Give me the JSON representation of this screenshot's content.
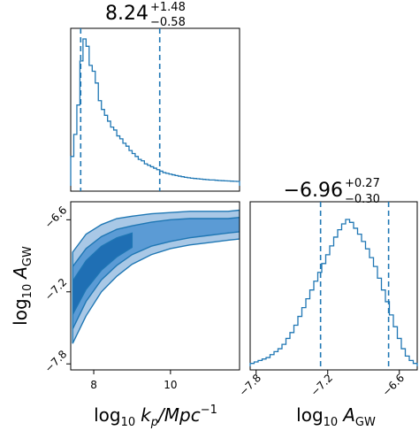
{
  "chart_data": {
    "type": "corner",
    "color": "#1f77b4",
    "parameters": [
      {
        "key": "log_kp",
        "title_main": "8.24",
        "title_plus": "+1.48",
        "title_minus": "−0.58",
        "axis_label_main": "log",
        "axis_label_sub": "10",
        "axis_label_tail": "k",
        "axis_label_tail_sub": "p",
        "axis_label_tail2": "/Mpc",
        "axis_label_tail2_sup": "−1",
        "range": [
          7.4,
          11.8
        ],
        "ticks": [
          8,
          10
        ],
        "tick_labels": [
          "8",
          "10"
        ],
        "quantiles": [
          7.66,
          8.24,
          9.72
        ],
        "histogram_density": [
          0.2,
          0.35,
          0.55,
          0.85,
          1.0,
          0.95,
          0.82,
          0.78,
          0.7,
          0.58,
          0.52,
          0.48,
          0.44,
          0.4,
          0.38,
          0.34,
          0.32,
          0.29,
          0.27,
          0.24,
          0.22,
          0.2,
          0.18,
          0.17,
          0.15,
          0.14,
          0.13,
          0.12,
          0.11,
          0.1,
          0.09,
          0.085,
          0.08,
          0.075,
          0.07,
          0.066,
          0.062,
          0.058,
          0.055,
          0.052,
          0.05,
          0.048,
          0.046,
          0.044,
          0.042,
          0.04,
          0.04,
          0.038,
          0.036,
          0.035,
          0.034,
          0.033,
          0.032,
          0.031,
          0.03
        ]
      },
      {
        "key": "log_agw",
        "title_main": "−6.96",
        "title_plus": "+0.27",
        "title_minus": "−0.30",
        "axis_label_main": "log",
        "axis_label_sub": "10",
        "axis_label_tail": "A",
        "axis_label_tail_sub": "GW",
        "range": [
          -7.85,
          -6.45
        ],
        "ticks": [
          -7.8,
          -7.2,
          -6.6
        ],
        "tick_labels": [
          "−7.8",
          "−7.2",
          "−6.6"
        ],
        "quantiles": [
          -7.26,
          -6.96,
          -6.69
        ],
        "histogram_density": [
          0.02,
          0.03,
          0.04,
          0.05,
          0.06,
          0.08,
          0.1,
          0.12,
          0.15,
          0.19,
          0.23,
          0.28,
          0.34,
          0.4,
          0.46,
          0.52,
          0.58,
          0.64,
          0.7,
          0.76,
          0.82,
          0.88,
          0.93,
          0.97,
          1.0,
          0.98,
          0.94,
          0.9,
          0.85,
          0.8,
          0.74,
          0.68,
          0.6,
          0.52,
          0.44,
          0.35,
          0.27,
          0.19,
          0.12,
          0.07,
          0.04,
          0.02
        ]
      }
    ],
    "joint": {
      "x": "log_kp",
      "y": "log_agw",
      "ridge_x": [
        7.45,
        7.8,
        8.2,
        8.6,
        9.0,
        9.5,
        10.0,
        10.5,
        11.0,
        11.5,
        11.8
      ],
      "ridge_y": [
        -7.25,
        -7.06,
        -6.92,
        -6.83,
        -6.77,
        -6.72,
        -6.69,
        -6.67,
        -6.66,
        -6.65,
        -6.64
      ],
      "outer_halfwidth": [
        0.38,
        0.34,
        0.28,
        0.24,
        0.2,
        0.17,
        0.15,
        0.14,
        0.13,
        0.12,
        0.12
      ],
      "inner_halfwidth": [
        0.26,
        0.22,
        0.18,
        0.15,
        0.12,
        0.1,
        0.09,
        0.08,
        0.07,
        0.06,
        0.06
      ],
      "core_halfwidth": [
        0.14,
        0.12,
        0.1,
        0.08,
        0.06
      ]
    }
  }
}
